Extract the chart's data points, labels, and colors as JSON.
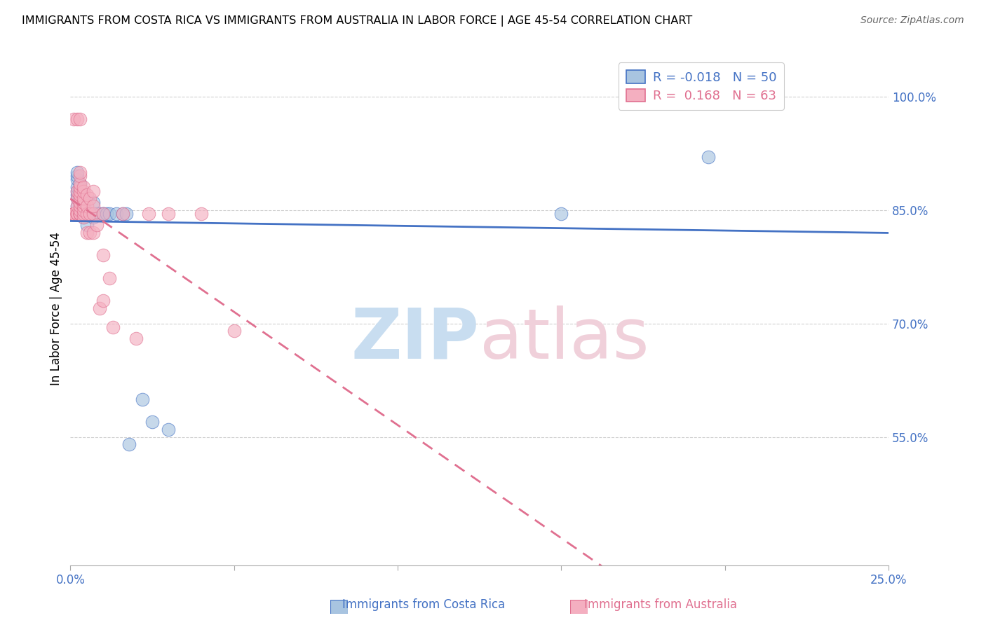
{
  "title": "IMMIGRANTS FROM COSTA RICA VS IMMIGRANTS FROM AUSTRALIA IN LABOR FORCE | AGE 45-54 CORRELATION CHART",
  "source": "Source: ZipAtlas.com",
  "ylabel": "In Labor Force | Age 45-54",
  "xmin": 0.0,
  "xmax": 0.25,
  "ymin": 0.38,
  "ymax": 1.06,
  "blue_color": "#a8c4e0",
  "pink_color": "#f4afc0",
  "trendline_blue_color": "#4472c4",
  "trendline_pink_color": "#e07090",
  "grid_color": "#d0d0d0",
  "legend_blue_label": "R = -0.018   N = 50",
  "legend_pink_label": "R =  0.168   N = 63",
  "blue_scatter_x": [
    0.001,
    0.001,
    0.001,
    0.001,
    0.002,
    0.002,
    0.002,
    0.002,
    0.002,
    0.002,
    0.002,
    0.002,
    0.002,
    0.003,
    0.003,
    0.003,
    0.003,
    0.003,
    0.003,
    0.003,
    0.003,
    0.003,
    0.003,
    0.003,
    0.003,
    0.004,
    0.004,
    0.004,
    0.004,
    0.004,
    0.005,
    0.005,
    0.006,
    0.007,
    0.007,
    0.008,
    0.009,
    0.01,
    0.01,
    0.011,
    0.012,
    0.014,
    0.016,
    0.017,
    0.018,
    0.022,
    0.025,
    0.03,
    0.15,
    0.195
  ],
  "blue_scatter_y": [
    0.845,
    0.845,
    0.845,
    0.845,
    0.845,
    0.855,
    0.865,
    0.87,
    0.875,
    0.88,
    0.89,
    0.895,
    0.9,
    0.845,
    0.845,
    0.845,
    0.85,
    0.855,
    0.86,
    0.865,
    0.87,
    0.875,
    0.878,
    0.88,
    0.885,
    0.84,
    0.845,
    0.85,
    0.86,
    0.865,
    0.83,
    0.845,
    0.845,
    0.84,
    0.86,
    0.845,
    0.845,
    0.845,
    0.845,
    0.845,
    0.845,
    0.845,
    0.845,
    0.845,
    0.54,
    0.6,
    0.57,
    0.56,
    0.845,
    0.92
  ],
  "pink_scatter_x": [
    0.001,
    0.001,
    0.001,
    0.001,
    0.001,
    0.001,
    0.002,
    0.002,
    0.002,
    0.002,
    0.002,
    0.002,
    0.002,
    0.002,
    0.003,
    0.003,
    0.003,
    0.003,
    0.003,
    0.003,
    0.003,
    0.003,
    0.003,
    0.003,
    0.003,
    0.003,
    0.003,
    0.003,
    0.003,
    0.003,
    0.003,
    0.004,
    0.004,
    0.004,
    0.004,
    0.004,
    0.004,
    0.004,
    0.004,
    0.005,
    0.005,
    0.005,
    0.005,
    0.006,
    0.006,
    0.006,
    0.007,
    0.007,
    0.007,
    0.007,
    0.008,
    0.009,
    0.01,
    0.01,
    0.01,
    0.012,
    0.013,
    0.016,
    0.02,
    0.024,
    0.03,
    0.04,
    0.05
  ],
  "pink_scatter_y": [
    0.845,
    0.845,
    0.845,
    0.845,
    0.845,
    0.97,
    0.845,
    0.845,
    0.845,
    0.845,
    0.855,
    0.865,
    0.875,
    0.97,
    0.845,
    0.845,
    0.845,
    0.845,
    0.845,
    0.845,
    0.85,
    0.855,
    0.86,
    0.865,
    0.87,
    0.875,
    0.88,
    0.885,
    0.895,
    0.9,
    0.97,
    0.84,
    0.845,
    0.85,
    0.855,
    0.86,
    0.865,
    0.875,
    0.88,
    0.82,
    0.845,
    0.855,
    0.87,
    0.82,
    0.845,
    0.865,
    0.82,
    0.845,
    0.855,
    0.875,
    0.83,
    0.72,
    0.73,
    0.79,
    0.845,
    0.76,
    0.695,
    0.845,
    0.68,
    0.845,
    0.845,
    0.845,
    0.69
  ]
}
